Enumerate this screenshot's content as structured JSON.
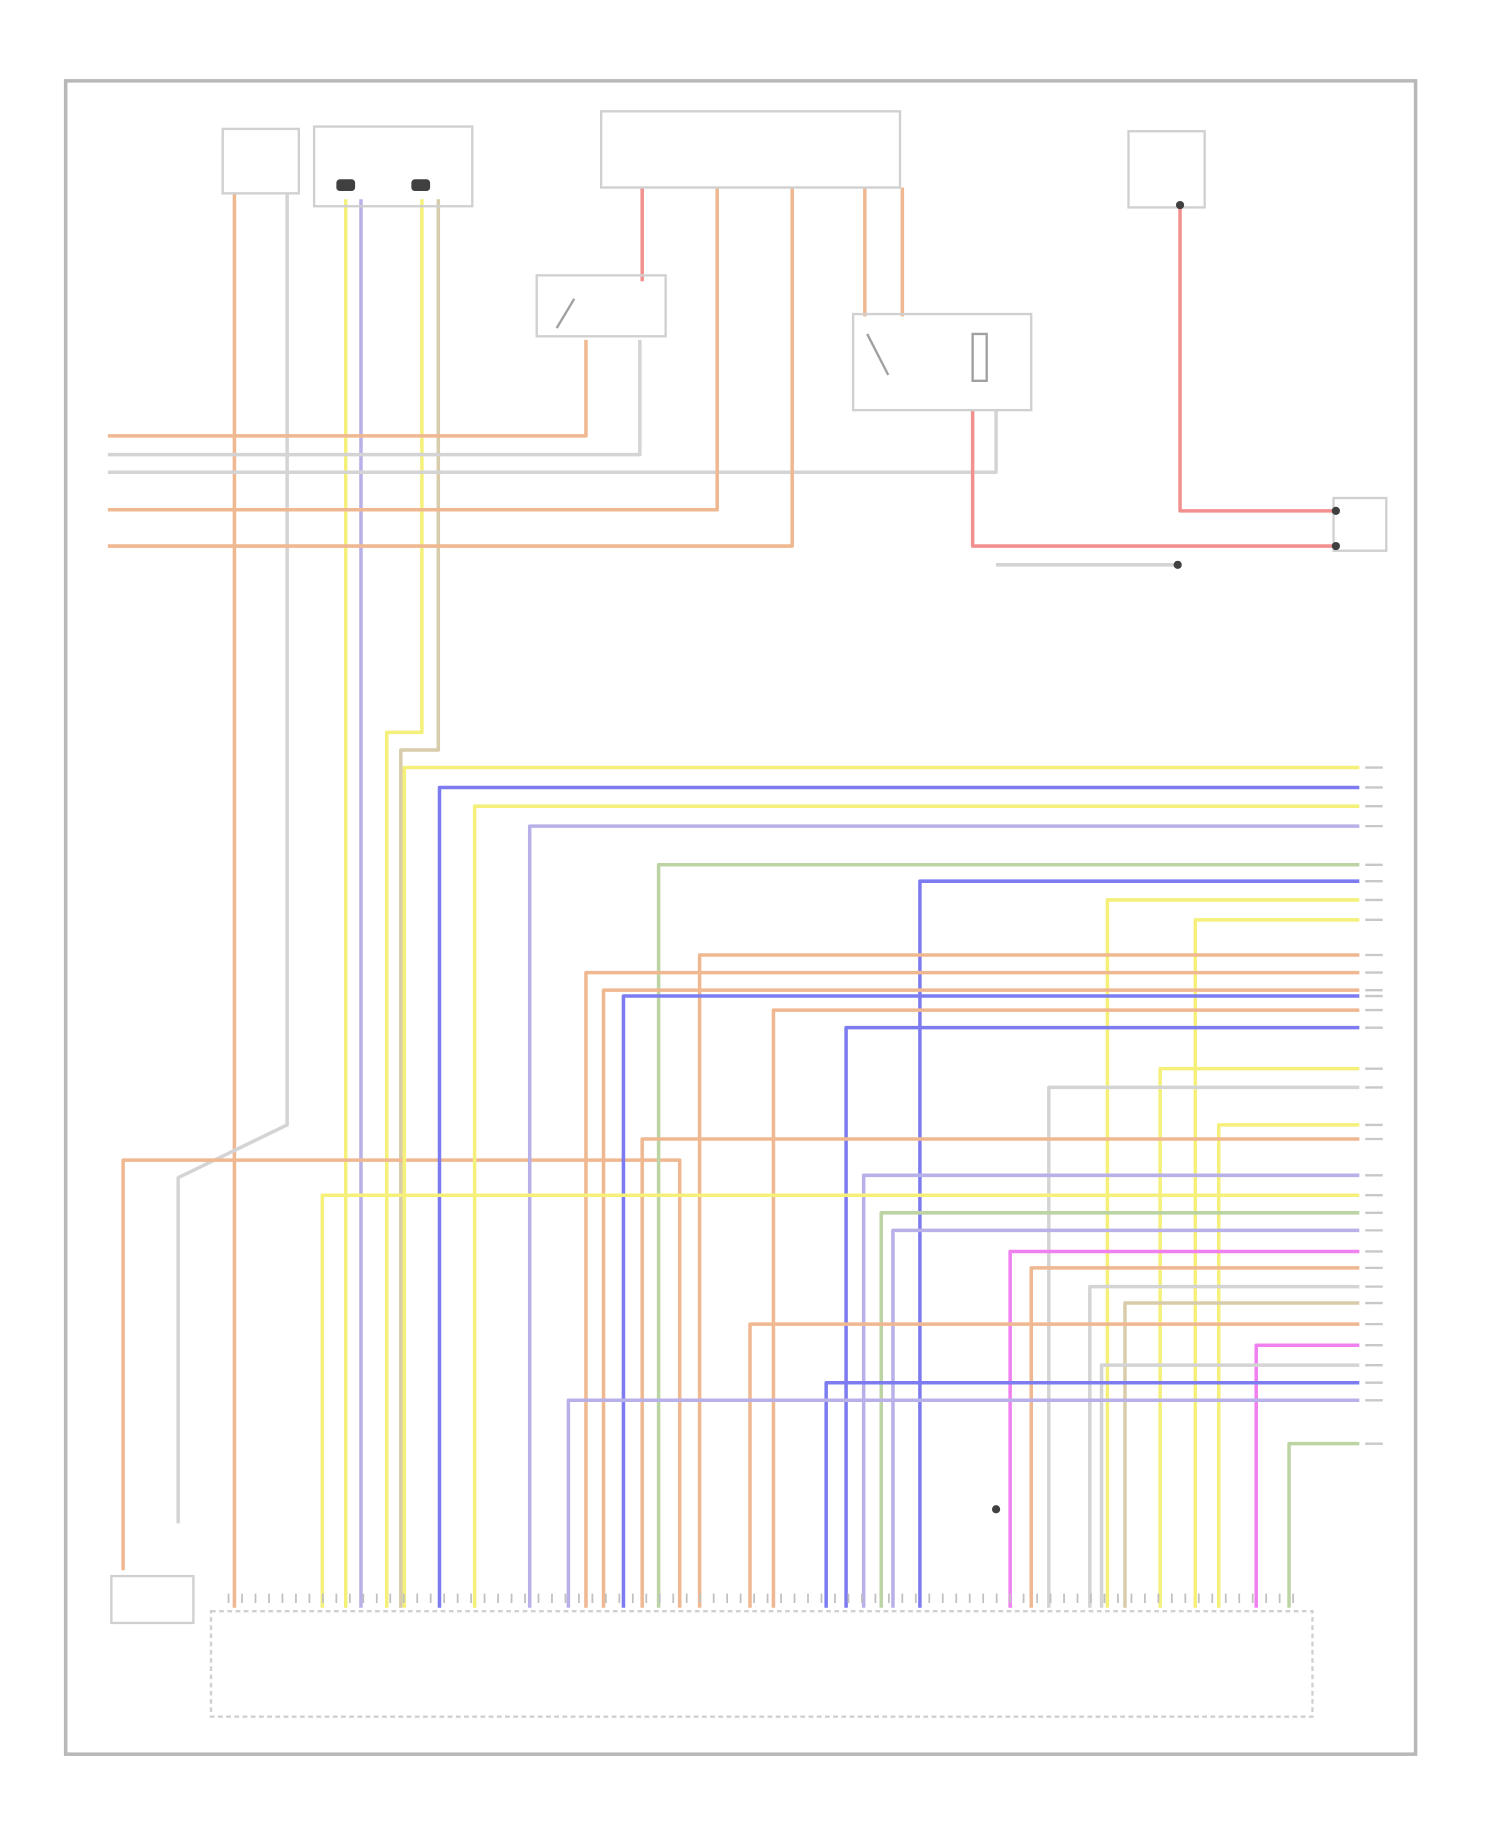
{
  "diagram": {
    "type": "wiring-diagram",
    "frame_color": "#b8b8b8",
    "component_outline_color": "#d0d0d0",
    "splice_color": "#404040",
    "wire_colors": {
      "orange": "#f0b890",
      "yellow": "#f4f07a",
      "violet": "#b8b0e8",
      "blue": "#7c7cf0",
      "red": "#f29090",
      "magenta": "#f080f0",
      "gray": "#d4d4d4",
      "green": "#bcd4a4",
      "tan": "#d8ccaa"
    }
  }
}
